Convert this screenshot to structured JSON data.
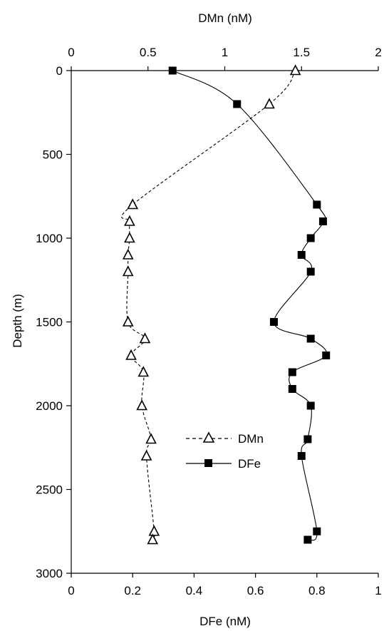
{
  "chart_data": {
    "type": "scatter",
    "y_axis": {
      "label": "Depth (m)",
      "range": [
        0,
        3000
      ],
      "inverted": true,
      "ticks": [
        "0",
        "500",
        "1000",
        "1500",
        "2000",
        "2500",
        "3000"
      ]
    },
    "x_axis_top": {
      "label": "DMn (nM)",
      "range": [
        0,
        2
      ],
      "ticks": [
        "0",
        "0.5",
        "1",
        "1.5",
        "2"
      ]
    },
    "x_axis_bottom": {
      "label": "DFe (nM)",
      "range": [
        0,
        1
      ],
      "ticks": [
        "0",
        "0.2",
        "0.4",
        "0.6",
        "0.8",
        "1"
      ]
    },
    "grid": false,
    "legend_position": "center",
    "series": [
      {
        "name": "DMn",
        "axis": "top",
        "marker": "open-triangle",
        "line": "dashed",
        "color": "#000000",
        "points": [
          {
            "x": 1.46,
            "depth": 0
          },
          {
            "x": 1.29,
            "depth": 200
          },
          {
            "x": 0.4,
            "depth": 800
          },
          {
            "x": 0.38,
            "depth": 900
          },
          {
            "x": 0.38,
            "depth": 1000
          },
          {
            "x": 0.37,
            "depth": 1100
          },
          {
            "x": 0.37,
            "depth": 1200
          },
          {
            "x": 0.37,
            "depth": 1500
          },
          {
            "x": 0.48,
            "depth": 1600
          },
          {
            "x": 0.39,
            "depth": 1700
          },
          {
            "x": 0.47,
            "depth": 1800
          },
          {
            "x": 0.46,
            "depth": 2000
          },
          {
            "x": 0.52,
            "depth": 2200
          },
          {
            "x": 0.49,
            "depth": 2300
          },
          {
            "x": 0.54,
            "depth": 2750
          },
          {
            "x": 0.53,
            "depth": 2800
          }
        ]
      },
      {
        "name": "DFe",
        "axis": "bottom",
        "marker": "filled-square",
        "line": "solid",
        "color": "#000000",
        "points": [
          {
            "x": 0.33,
            "depth": 0
          },
          {
            "x": 0.54,
            "depth": 200
          },
          {
            "x": 0.8,
            "depth": 800
          },
          {
            "x": 0.82,
            "depth": 900
          },
          {
            "x": 0.78,
            "depth": 1000
          },
          {
            "x": 0.75,
            "depth": 1100
          },
          {
            "x": 0.78,
            "depth": 1200
          },
          {
            "x": 0.66,
            "depth": 1500
          },
          {
            "x": 0.78,
            "depth": 1600
          },
          {
            "x": 0.83,
            "depth": 1700
          },
          {
            "x": 0.72,
            "depth": 1800
          },
          {
            "x": 0.72,
            "depth": 1900
          },
          {
            "x": 0.78,
            "depth": 2000
          },
          {
            "x": 0.77,
            "depth": 2200
          },
          {
            "x": 0.75,
            "depth": 2300
          },
          {
            "x": 0.8,
            "depth": 2750
          },
          {
            "x": 0.77,
            "depth": 2800
          }
        ]
      }
    ]
  }
}
